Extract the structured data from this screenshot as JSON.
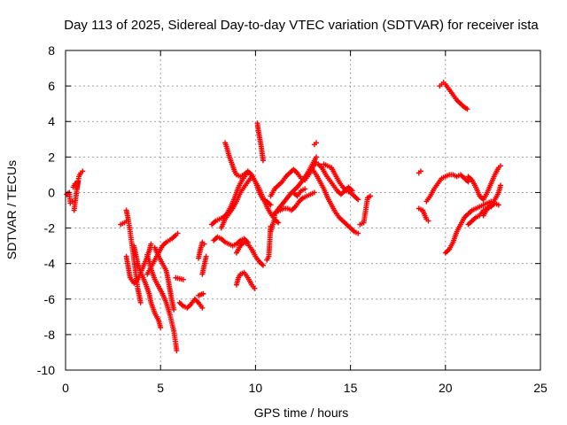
{
  "chart_data": {
    "type": "scatter",
    "title": "Day 113 of 2025, Sidereal Day-to-day VTEC variation (SDTVAR) for receiver ista",
    "xlabel": "GPS time / hours",
    "ylabel": "SDTVAR / TECUs",
    "xlim": [
      0,
      25
    ],
    "ylim": [
      -10,
      8
    ],
    "xticks": [
      0,
      5,
      10,
      15,
      20,
      25
    ],
    "yticks": [
      -10,
      -8,
      -6,
      -4,
      -2,
      0,
      2,
      4,
      6,
      8
    ],
    "grid": true,
    "marker": "+",
    "color": "#ff0000",
    "segments": [
      [
        [
          0.05,
          -0.1
        ],
        [
          0.2,
          0.0
        ],
        [
          0.25,
          -0.6
        ],
        [
          0.35,
          -0.5
        ]
      ],
      [
        [
          0.4,
          0.3
        ],
        [
          0.5,
          0.5
        ],
        [
          0.6,
          0.2
        ],
        [
          0.7,
          0.9
        ],
        [
          0.8,
          1.1
        ],
        [
          0.9,
          1.2
        ],
        [
          0.45,
          -1.0
        ],
        [
          0.65,
          0.6
        ]
      ],
      [
        [
          2.9,
          -1.8
        ],
        [
          3.1,
          -1.7
        ],
        [
          3.2,
          -1.6
        ]
      ],
      [
        [
          3.2,
          -1.0
        ],
        [
          3.3,
          -1.5
        ],
        [
          3.4,
          -2.2
        ],
        [
          3.5,
          -3.0
        ],
        [
          3.6,
          -3.8
        ],
        [
          3.7,
          -4.6
        ],
        [
          3.8,
          -5.4
        ],
        [
          3.9,
          -5.9
        ],
        [
          3.95,
          -6.2
        ]
      ],
      [
        [
          3.2,
          -3.6
        ],
        [
          3.3,
          -4.2
        ],
        [
          3.4,
          -4.8
        ],
        [
          3.6,
          -5.1
        ],
        [
          3.8,
          -4.9
        ],
        [
          4.0,
          -4.4
        ],
        [
          4.2,
          -3.9
        ],
        [
          4.4,
          -3.3
        ],
        [
          4.5,
          -2.9
        ]
      ],
      [
        [
          3.6,
          -3.0
        ],
        [
          3.7,
          -3.5
        ],
        [
          3.8,
          -4.0
        ],
        [
          4.0,
          -4.6
        ],
        [
          4.2,
          -5.1
        ],
        [
          4.4,
          -5.7
        ],
        [
          4.5,
          -6.2
        ],
        [
          4.7,
          -6.8
        ],
        [
          4.9,
          -7.2
        ],
        [
          5.0,
          -7.6
        ]
      ],
      [
        [
          4.3,
          -3.5
        ],
        [
          4.4,
          -3.9
        ],
        [
          4.5,
          -4.3
        ],
        [
          4.7,
          -4.9
        ],
        [
          4.9,
          -5.3
        ],
        [
          5.1,
          -5.7
        ],
        [
          5.3,
          -6.2
        ],
        [
          5.5,
          -6.9
        ],
        [
          5.7,
          -7.8
        ],
        [
          5.8,
          -8.5
        ],
        [
          5.85,
          -8.9
        ]
      ],
      [
        [
          4.7,
          -3.1
        ],
        [
          4.9,
          -3.6
        ],
        [
          5.1,
          -4.0
        ],
        [
          5.3,
          -4.4
        ],
        [
          5.4,
          -4.9
        ],
        [
          5.5,
          -5.5
        ],
        [
          5.6,
          -6.1
        ],
        [
          5.7,
          -6.6
        ]
      ],
      [
        [
          4.3,
          -4.6
        ],
        [
          4.5,
          -4.2
        ],
        [
          4.7,
          -3.8
        ],
        [
          4.9,
          -3.4
        ],
        [
          5.1,
          -3.0
        ],
        [
          5.3,
          -2.8
        ],
        [
          5.6,
          -2.6
        ],
        [
          5.8,
          -2.4
        ],
        [
          5.9,
          -2.3
        ]
      ],
      [
        [
          6.0,
          -6.2
        ],
        [
          6.2,
          -6.4
        ],
        [
          6.4,
          -6.5
        ],
        [
          6.6,
          -6.3
        ],
        [
          6.8,
          -6.0
        ],
        [
          7.0,
          -6.2
        ],
        [
          7.2,
          -6.5
        ]
      ],
      [
        [
          5.8,
          -4.8
        ],
        [
          6.2,
          -4.9
        ]
      ],
      [
        [
          7.0,
          -3.7
        ],
        [
          7.1,
          -3.2
        ],
        [
          7.2,
          -2.8
        ],
        [
          7.3,
          -2.9
        ]
      ],
      [
        [
          7.2,
          -4.6
        ],
        [
          7.3,
          -4.1
        ],
        [
          7.4,
          -3.6
        ]
      ],
      [
        [
          7.0,
          -5.8
        ],
        [
          7.25,
          -5.7
        ]
      ],
      [
        [
          7.7,
          -1.8
        ],
        [
          7.9,
          -1.6
        ],
        [
          8.1,
          -1.5
        ],
        [
          8.3,
          -1.4
        ],
        [
          8.5,
          -1.2
        ],
        [
          8.7,
          -0.8
        ],
        [
          8.9,
          -0.3
        ],
        [
          9.1,
          0.3
        ],
        [
          9.3,
          0.7
        ],
        [
          9.5,
          1.0
        ],
        [
          9.6,
          1.1
        ]
      ],
      [
        [
          8.4,
          2.8
        ],
        [
          8.5,
          2.5
        ],
        [
          8.6,
          2.1
        ],
        [
          8.7,
          1.8
        ],
        [
          8.8,
          1.5
        ],
        [
          8.9,
          1.2
        ],
        [
          9.0,
          1.0
        ],
        [
          9.2,
          0.9
        ],
        [
          9.4,
          1.0
        ],
        [
          9.6,
          1.2
        ],
        [
          9.8,
          1.0
        ],
        [
          10.0,
          0.6
        ],
        [
          10.2,
          0.2
        ],
        [
          10.4,
          -0.3
        ],
        [
          10.6,
          -0.8
        ],
        [
          10.8,
          -1.2
        ],
        [
          11.0,
          -1.5
        ],
        [
          11.2,
          -1.7
        ]
      ],
      [
        [
          7.8,
          -2.7
        ],
        [
          8.0,
          -2.5
        ],
        [
          8.2,
          -2.6
        ],
        [
          8.4,
          -2.8
        ],
        [
          8.6,
          -2.9
        ],
        [
          8.8,
          -3.0
        ],
        [
          9.0,
          -2.9
        ],
        [
          9.2,
          -2.7
        ],
        [
          9.4,
          -2.6
        ],
        [
          9.6,
          -2.8
        ]
      ],
      [
        [
          8.2,
          -2.0
        ],
        [
          8.4,
          -1.5
        ],
        [
          8.6,
          -1.2
        ],
        [
          8.8,
          -0.9
        ],
        [
          9.0,
          -0.5
        ],
        [
          9.2,
          0.0
        ],
        [
          9.4,
          0.3
        ],
        [
          9.6,
          0.6
        ],
        [
          9.8,
          0.9
        ],
        [
          10.0,
          0.6
        ],
        [
          10.2,
          0.0
        ],
        [
          10.4,
          -0.4
        ],
        [
          10.6,
          -0.5
        ],
        [
          10.8,
          -0.7
        ]
      ],
      [
        [
          9.0,
          -3.4
        ],
        [
          9.2,
          -3.0
        ],
        [
          9.4,
          -2.8
        ],
        [
          9.6,
          -2.9
        ],
        [
          9.8,
          -3.2
        ],
        [
          10.0,
          -3.6
        ],
        [
          10.2,
          -3.9
        ],
        [
          10.4,
          -4.1
        ]
      ],
      [
        [
          10.1,
          3.9
        ],
        [
          10.15,
          3.5
        ],
        [
          10.2,
          3.2
        ],
        [
          10.3,
          2.6
        ],
        [
          10.35,
          2.2
        ],
        [
          10.4,
          1.8
        ]
      ],
      [
        [
          9.0,
          -5.2
        ],
        [
          9.1,
          -4.8
        ],
        [
          9.2,
          -4.6
        ],
        [
          9.4,
          -4.5
        ],
        [
          9.6,
          -4.8
        ],
        [
          9.8,
          -5.2
        ],
        [
          9.95,
          -5.4
        ]
      ],
      [
        [
          10.6,
          -3.8
        ],
        [
          10.7,
          -3.6
        ],
        [
          10.8,
          -1.9
        ],
        [
          10.8,
          -2.2
        ],
        [
          11.0,
          -1.5
        ],
        [
          11.0,
          -1.2
        ]
      ],
      [
        [
          10.8,
          -0.2
        ],
        [
          11.0,
          0.2
        ],
        [
          11.2,
          0.4
        ],
        [
          11.4,
          0.6
        ],
        [
          11.6,
          0.9
        ],
        [
          11.8,
          1.1
        ],
        [
          12.0,
          1.3
        ],
        [
          12.2,
          1.1
        ],
        [
          12.4,
          0.8
        ],
        [
          12.6,
          0.7
        ],
        [
          12.8,
          1.0
        ],
        [
          13.0,
          1.4
        ],
        [
          13.2,
          1.7
        ]
      ],
      [
        [
          10.9,
          -1.3
        ],
        [
          11.1,
          -1.1
        ],
        [
          11.3,
          -1.0
        ],
        [
          11.5,
          -0.9
        ],
        [
          11.7,
          -0.9
        ],
        [
          11.9,
          -1.0
        ],
        [
          12.1,
          -0.8
        ],
        [
          12.3,
          -0.5
        ],
        [
          12.5,
          -0.3
        ],
        [
          12.7,
          -0.2
        ],
        [
          12.9,
          -0.1
        ],
        [
          13.1,
          0.0
        ]
      ],
      [
        [
          11.0,
          -1.2
        ],
        [
          11.3,
          -0.8
        ],
        [
          11.6,
          -0.4
        ],
        [
          11.9,
          0.0
        ],
        [
          12.2,
          0.3
        ],
        [
          12.5,
          0.7
        ],
        [
          12.8,
          1.2
        ],
        [
          13.0,
          1.6
        ],
        [
          13.2,
          2.0
        ]
      ],
      [
        [
          12.0,
          0.0
        ],
        [
          12.2,
          -0.2
        ],
        [
          12.4,
          0.1
        ],
        [
          12.6,
          0.2
        ]
      ],
      [
        [
          13.1,
          2.7
        ],
        [
          13.2,
          2.8
        ]
      ],
      [
        [
          13.0,
          1.3
        ],
        [
          13.2,
          1.0
        ],
        [
          13.4,
          0.6
        ],
        [
          13.6,
          0.2
        ],
        [
          13.8,
          -0.3
        ],
        [
          14.0,
          -0.7
        ],
        [
          14.2,
          -1.1
        ],
        [
          14.4,
          -1.4
        ],
        [
          14.6,
          -1.6
        ],
        [
          14.8,
          -1.8
        ],
        [
          15.0,
          -2.0
        ],
        [
          15.2,
          -2.2
        ],
        [
          15.4,
          -2.3
        ]
      ],
      [
        [
          13.3,
          1.6
        ],
        [
          13.5,
          1.4
        ],
        [
          13.7,
          1.0
        ],
        [
          13.9,
          0.7
        ],
        [
          14.1,
          0.4
        ],
        [
          14.3,
          0.1
        ],
        [
          14.5,
          -0.1
        ],
        [
          14.7,
          0.1
        ],
        [
          14.9,
          0.3
        ],
        [
          15.1,
          0.1
        ]
      ],
      [
        [
          13.6,
          1.6
        ],
        [
          13.8,
          1.5
        ],
        [
          14.0,
          1.4
        ],
        [
          14.2,
          1.0
        ],
        [
          14.4,
          0.6
        ],
        [
          14.6,
          0.3
        ],
        [
          14.8,
          0.1
        ],
        [
          15.0,
          0.0
        ],
        [
          15.2,
          -0.2
        ],
        [
          15.4,
          -0.4
        ]
      ],
      [
        [
          15.5,
          -1.8
        ],
        [
          15.7,
          -1.7
        ],
        [
          15.9,
          -0.3
        ],
        [
          16.05,
          -0.2
        ]
      ],
      [
        [
          18.6,
          1.1
        ],
        [
          18.7,
          1.2
        ]
      ],
      [
        [
          18.6,
          -0.9
        ],
        [
          18.8,
          -1.0
        ],
        [
          19.0,
          -1.5
        ],
        [
          19.1,
          -1.6
        ]
      ],
      [
        [
          19.0,
          -0.5
        ],
        [
          19.2,
          -0.2
        ],
        [
          19.4,
          0.2
        ],
        [
          19.6,
          0.5
        ],
        [
          19.8,
          0.8
        ],
        [
          20.0,
          0.9
        ],
        [
          20.2,
          1.0
        ],
        [
          20.4,
          1.0
        ],
        [
          20.6,
          0.9
        ],
        [
          20.8,
          1.0
        ],
        [
          21.0,
          0.8
        ],
        [
          21.2,
          0.6
        ]
      ],
      [
        [
          19.7,
          6.0
        ],
        [
          19.8,
          6.1
        ],
        [
          19.9,
          6.2
        ],
        [
          20.0,
          6.1
        ],
        [
          20.2,
          5.8
        ],
        [
          20.4,
          5.5
        ],
        [
          20.6,
          5.2
        ],
        [
          20.8,
          5.0
        ],
        [
          21.0,
          4.8
        ],
        [
          21.15,
          4.7
        ]
      ],
      [
        [
          20.0,
          -3.4
        ],
        [
          20.2,
          -3.2
        ],
        [
          20.4,
          -2.8
        ],
        [
          20.6,
          -2.2
        ],
        [
          20.8,
          -1.8
        ],
        [
          21.0,
          -1.4
        ],
        [
          21.2,
          -1.2
        ],
        [
          21.4,
          -1.0
        ],
        [
          21.6,
          -0.9
        ],
        [
          21.8,
          -0.8
        ],
        [
          22.0,
          -0.7
        ],
        [
          22.2,
          -0.6
        ],
        [
          22.4,
          -0.5
        ]
      ],
      [
        [
          21.2,
          -1.8
        ],
        [
          21.4,
          -1.6
        ],
        [
          21.6,
          -1.4
        ],
        [
          21.8,
          -1.3
        ],
        [
          22.0,
          -1.0
        ],
        [
          22.2,
          -0.9
        ],
        [
          22.4,
          -0.8
        ],
        [
          22.6,
          -0.6
        ],
        [
          22.8,
          -0.7
        ]
      ],
      [
        [
          21.2,
          0.9
        ],
        [
          21.4,
          0.7
        ],
        [
          21.6,
          0.3
        ],
        [
          21.8,
          -0.2
        ],
        [
          22.0,
          -0.4
        ],
        [
          22.2,
          0.0
        ],
        [
          22.4,
          0.5
        ],
        [
          22.6,
          1.0
        ],
        [
          22.8,
          1.4
        ],
        [
          22.9,
          1.5
        ]
      ],
      [
        [
          22.0,
          -1.3
        ],
        [
          22.2,
          -0.9
        ],
        [
          22.4,
          -0.7
        ],
        [
          22.6,
          -0.4
        ],
        [
          22.8,
          0.0
        ],
        [
          22.9,
          0.4
        ]
      ]
    ]
  }
}
